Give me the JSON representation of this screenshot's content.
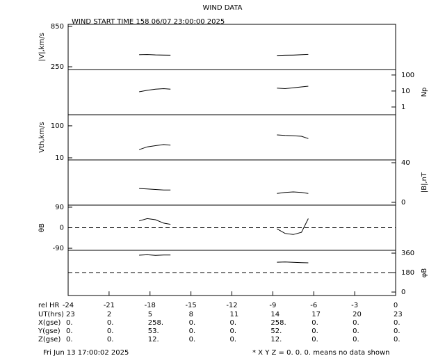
{
  "title": "WIND DATA",
  "subtitle": "WIND START TIME 158 06/07 23:00:00 2025",
  "footer_left": "Fri Jun 13 17:00:02 2025",
  "footer_right": "* X Y Z = 0. 0. 0. means no data shown",
  "table": {
    "rows": [
      {
        "label": "UT(hrs)",
        "cells": [
          "23",
          "2",
          "5",
          "8",
          "11",
          "14",
          "17",
          "20",
          "23"
        ]
      },
      {
        "label": "X(gse)",
        "cells": [
          "0.",
          "0.",
          "258.",
          "0.",
          "0.",
          "258.",
          "0.",
          "0.",
          "0."
        ]
      },
      {
        "label": "Y(gse)",
        "cells": [
          "0.",
          "0.",
          "53.",
          "0.",
          "0.",
          "52.",
          "0.",
          "0.",
          "0."
        ]
      },
      {
        "label": "Z(gse)",
        "cells": [
          "0.",
          "0.",
          "12.",
          "0.",
          "0.",
          "12.",
          "0.",
          "0.",
          "0."
        ]
      }
    ]
  },
  "chart_data": [
    {
      "type": "line",
      "y_label": "|V|,km/s",
      "axis_side": "left",
      "log": false,
      "xlim": [
        -24,
        0
      ],
      "ylim": [
        209,
        881
      ],
      "yticks": [
        250,
        850
      ],
      "x": [
        -18.8,
        -18.2,
        -17.6,
        -17,
        -16.5,
        -12.5,
        -8.7,
        -8.1,
        -7.5,
        -6.9,
        -6.4
      ],
      "series": [
        {
          "color": "#000000",
          "values": [
            428,
            431,
            426,
            424,
            422,
            null,
            418,
            422,
            424,
            428,
            432
          ]
        }
      ]
    },
    {
      "type": "line",
      "y_label": "Np",
      "axis_side": "right",
      "log": true,
      "xlim": [
        -24,
        0
      ],
      "ylim": [
        0.33,
        220
      ],
      "yticks": [
        1,
        10,
        100
      ],
      "x": [
        -18.8,
        -18.2,
        -17.6,
        -17,
        -16.5,
        -12.5,
        -8.7,
        -8.1,
        -7.5,
        -6.9,
        -6.4
      ],
      "series": [
        {
          "color": "#000000",
          "values": [
            9,
            11,
            13,
            14,
            13,
            null,
            15,
            14,
            16,
            18,
            20
          ]
        }
      ]
    },
    {
      "type": "line",
      "y_label": "Vth,km/s",
      "axis_side": "left",
      "log": true,
      "xlim": [
        -24,
        0
      ],
      "ylim": [
        8.6,
        222
      ],
      "yticks": [
        10,
        100
      ],
      "x": [
        -18.8,
        -18.2,
        -17.6,
        -17,
        -16.5,
        -12.5,
        -8.7,
        -8.1,
        -7.5,
        -6.9,
        -6.4
      ],
      "series": [
        {
          "color": "#000000",
          "values": [
            18,
            22,
            24,
            26,
            25,
            null,
            52,
            50,
            49,
            47,
            40
          ]
        }
      ]
    },
    {
      "type": "line",
      "y_label": "|B|,nT",
      "axis_side": "right",
      "log": false,
      "xlim": [
        -24,
        0
      ],
      "ylim": [
        -2.8,
        42.8
      ],
      "yticks": [
        0,
        40
      ],
      "x": [
        -18.8,
        -18.2,
        -17.6,
        -17,
        -16.5,
        -12.5,
        -8.7,
        -8.1,
        -7.5,
        -6.9,
        -6.4
      ],
      "series": [
        {
          "color": "#000000",
          "values": [
            14,
            13.5,
            13,
            12.5,
            12.5,
            null,
            9,
            10,
            10.5,
            10,
            9
          ]
        }
      ]
    },
    {
      "type": "line",
      "y_label": "θB",
      "axis_side": "left",
      "log": false,
      "xlim": [
        -24,
        0
      ],
      "ylim": [
        -99,
        99
      ],
      "yticks": [
        -90,
        0,
        90
      ],
      "dashed_line": 0,
      "x": [
        -18.8,
        -18.2,
        -17.6,
        -17,
        -16.5,
        -12.5,
        -8.7,
        -8.1,
        -7.5,
        -6.9,
        -6.4
      ],
      "series": [
        {
          "color": "#000000",
          "values": [
            30,
            40,
            35,
            20,
            15,
            null,
            -5,
            -25,
            -30,
            -20,
            40
          ]
        }
      ]
    },
    {
      "type": "line",
      "y_label": "φB",
      "axis_side": "right",
      "log": false,
      "xlim": [
        -24,
        0
      ],
      "ylim": [
        -32,
        386
      ],
      "yticks": [
        0,
        180,
        360
      ],
      "dashed_line": 180,
      "x_label": "rel HR",
      "xticks": [
        -24,
        -21,
        -18,
        -15,
        -12,
        -9,
        -6,
        -3,
        0
      ],
      "x": [
        -18.8,
        -18.2,
        -17.6,
        -17,
        -16.5,
        -12.5,
        -8.7,
        -8.1,
        -7.5,
        -6.9,
        -6.4
      ],
      "series": [
        {
          "color": "#000000",
          "values": [
            341,
            345,
            340,
            342,
            343,
            null,
            276,
            278,
            275,
            272,
            270
          ]
        }
      ]
    }
  ]
}
